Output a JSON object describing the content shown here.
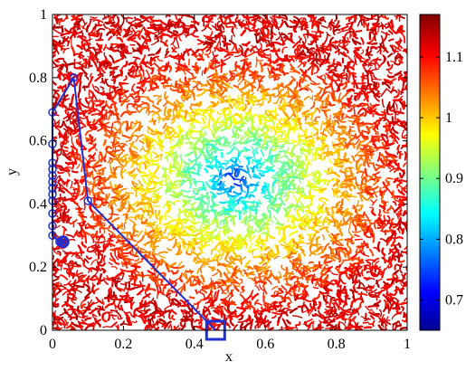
{
  "chart_data": {
    "type": "heatmap",
    "title": "",
    "xlabel": "x",
    "ylabel": "y",
    "xlim": [
      0,
      1
    ],
    "ylim": [
      0,
      1
    ],
    "x_ticks": [
      0,
      0.2,
      0.4,
      0.6,
      0.8,
      1
    ],
    "x_tick_labels": [
      "0",
      "0.2",
      "0.4",
      "0.6",
      "0.8",
      "1"
    ],
    "y_ticks": [
      0,
      0.2,
      0.4,
      0.6,
      0.8,
      1
    ],
    "y_tick_labels": [
      "0",
      "0.2",
      "0.4",
      "0.6",
      "0.8",
      "1"
    ],
    "field": {
      "description_of_values": "scalar field shown as speckled contour texture",
      "minimum_center": [
        0.52,
        0.48
      ],
      "value_at_center": 0.66,
      "value_at_far_edges": 1.12
    },
    "colorbar": {
      "range": [
        0.65,
        1.17
      ],
      "ticks": [
        0.7,
        0.8,
        0.9,
        1,
        1.1
      ],
      "tick_labels": [
        "0.7",
        "0.8",
        "0.9",
        "1",
        "1.1"
      ],
      "colormap": "jet"
    },
    "path": {
      "color": "#1f2fd0",
      "x": [
        0.46,
        0.1,
        0.06,
        0.0,
        0.0,
        0.0,
        0.0,
        0.0,
        0.0,
        0.0,
        0.0,
        0.0,
        0.0,
        0.0,
        0.0,
        0.02,
        0.03
      ],
      "y": [
        0.0,
        0.41,
        0.8,
        0.69,
        0.59,
        0.53,
        0.51,
        0.49,
        0.47,
        0.45,
        0.43,
        0.41,
        0.37,
        0.33,
        0.3,
        0.28,
        0.28
      ],
      "start_marker": "square",
      "end_marker": "x",
      "point_marker": "circle"
    },
    "grid": false,
    "legend": "none"
  }
}
